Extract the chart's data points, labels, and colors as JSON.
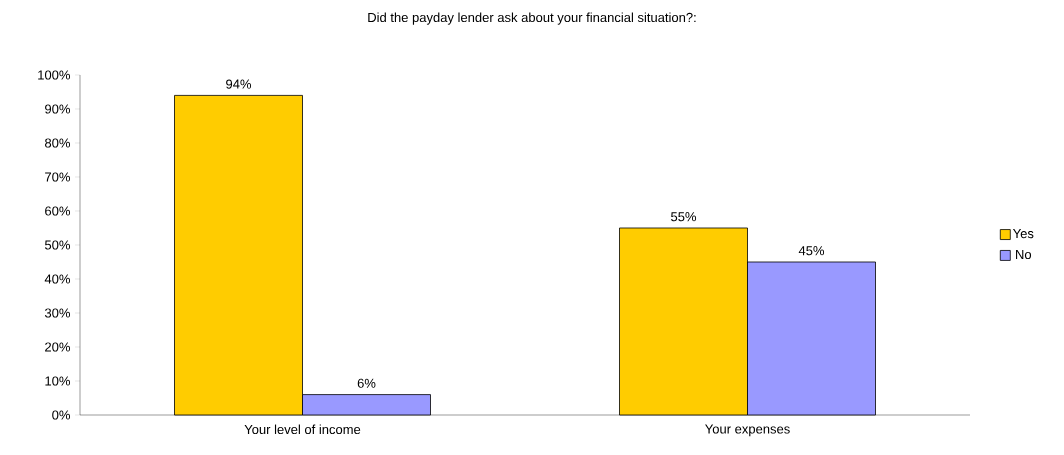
{
  "chart_data": {
    "type": "bar",
    "title": "Did the payday lender ask about your financial situation?:",
    "categories": [
      "Your level of income",
      "Your expenses"
    ],
    "series": [
      {
        "name": "Yes",
        "color": "#ffcc00",
        "values": [
          94,
          55
        ],
        "value_labels": [
          "94%",
          "55%"
        ]
      },
      {
        "name": "No",
        "color": "#9999ff",
        "values": [
          6,
          45
        ],
        "value_labels": [
          "6%",
          "45%"
        ]
      }
    ],
    "ylim": [
      0,
      100
    ],
    "yticks": [
      {
        "value": 0,
        "label": "0%"
      },
      {
        "value": 10,
        "label": "10%"
      },
      {
        "value": 20,
        "label": "20%"
      },
      {
        "value": 30,
        "label": "30%"
      },
      {
        "value": 40,
        "label": "40%"
      },
      {
        "value": 50,
        "label": "50%"
      },
      {
        "value": 60,
        "label": "60%"
      },
      {
        "value": 70,
        "label": "70%"
      },
      {
        "value": 80,
        "label": "80%"
      },
      {
        "value": 90,
        "label": "90%"
      },
      {
        "value": 100,
        "label": "100%"
      }
    ],
    "grid": false,
    "legend": "right"
  }
}
